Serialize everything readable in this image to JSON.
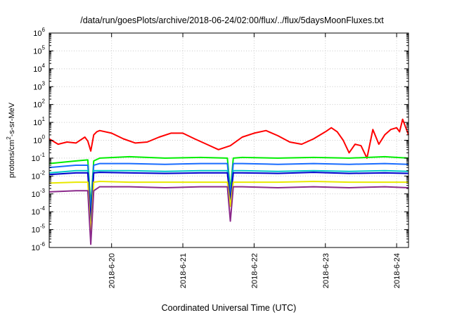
{
  "chart_data": {
    "type": "line",
    "title": "/data/run/goesPlots/archive/2018-06-24/02:00/flux/../flux/5daysMoonFluxes.txt",
    "xlabel": "Coordinated Universal Time (UTC)",
    "ylabel": {
      "pre": "protons/cm",
      "sup": "2",
      "post": "-s-sr-MeV"
    },
    "y_scale": "log",
    "ylim": [
      1e-06,
      1000000.0
    ],
    "xlim": [
      "2018-06-19 03:00",
      "2018-06-24 04:00"
    ],
    "grid": true,
    "legend": "none",
    "x_ticks": [
      "2018-6-20",
      "2018-6-21",
      "2018-6-22",
      "2018-6-23",
      "2018-6-24"
    ],
    "y_ticks": [
      {
        "base": "10",
        "exp": "6"
      },
      {
        "base": "10",
        "exp": "5"
      },
      {
        "base": "10",
        "exp": "4"
      },
      {
        "base": "10",
        "exp": "3"
      },
      {
        "base": "10",
        "exp": "2"
      },
      {
        "base": "10",
        "exp": "1"
      },
      {
        "base": "10",
        "exp": "0"
      },
      {
        "base": "10",
        "exp": "-1"
      },
      {
        "base": "10",
        "exp": "-2"
      },
      {
        "base": "10",
        "exp": "-3"
      },
      {
        "base": "10",
        "exp": "-4"
      },
      {
        "base": "10",
        "exp": "-5"
      },
      {
        "base": "10",
        "exp": "-6"
      }
    ],
    "series": [
      {
        "color": "#ff0000",
        "x": [
          "2018-06-19 03:00",
          "2018-06-19 06:00",
          "2018-06-19 09:00",
          "2018-06-19 12:00",
          "2018-06-19 15:00",
          "2018-06-19 16:00",
          "2018-06-19 17:00",
          "2018-06-19 18:00",
          "2018-06-19 19:00",
          "2018-06-19 20:00",
          "2018-06-20 00:00",
          "2018-06-20 04:00",
          "2018-06-20 08:00",
          "2018-06-20 12:00",
          "2018-06-20 16:00",
          "2018-06-20 20:00",
          "2018-06-21 00:00",
          "2018-06-21 04:00",
          "2018-06-21 08:00",
          "2018-06-21 12:00",
          "2018-06-21 16:00",
          "2018-06-21 20:00",
          "2018-06-22 00:00",
          "2018-06-22 04:00",
          "2018-06-22 08:00",
          "2018-06-22 12:00",
          "2018-06-22 16:00",
          "2018-06-22 20:00",
          "2018-06-23 00:00",
          "2018-06-23 02:00",
          "2018-06-23 04:00",
          "2018-06-23 06:00",
          "2018-06-23 08:00",
          "2018-06-23 10:00",
          "2018-06-23 12:00",
          "2018-06-23 14:00",
          "2018-06-23 16:00",
          "2018-06-23 18:00",
          "2018-06-23 20:00",
          "2018-06-23 22:00",
          "2018-06-24 00:00",
          "2018-06-24 01:00",
          "2018-06-24 02:00",
          "2018-06-24 04:00"
        ],
        "y": [
          1.2,
          0.6,
          0.8,
          0.7,
          1.5,
          0.9,
          0.25,
          2.0,
          3.0,
          3.5,
          2.5,
          1.2,
          0.7,
          0.8,
          1.5,
          2.5,
          2.5,
          1.2,
          0.6,
          0.3,
          0.5,
          1.5,
          2.5,
          3.5,
          1.8,
          0.8,
          0.6,
          1.2,
          3.0,
          5.0,
          3.0,
          1.0,
          0.2,
          0.6,
          0.5,
          0.1,
          4.0,
          0.6,
          2.0,
          4.0,
          5.0,
          3.0,
          15.0,
          2.0
        ]
      },
      {
        "color": "#00ee00",
        "x": [
          "2018-06-19 03:00",
          "2018-06-19 12:00",
          "2018-06-19 16:00",
          "2018-06-19 17:00",
          "2018-06-19 18:00",
          "2018-06-19 20:00",
          "2018-06-20 06:00",
          "2018-06-20 18:00",
          "2018-06-21 06:00",
          "2018-06-21 15:00",
          "2018-06-21 16:00",
          "2018-06-21 17:00",
          "2018-06-21 20:00",
          "2018-06-22 08:00",
          "2018-06-22 20:00",
          "2018-06-23 08:00",
          "2018-06-23 20:00",
          "2018-06-24 04:00"
        ],
        "y": [
          0.05,
          0.07,
          0.08,
          0.0002,
          0.07,
          0.1,
          0.12,
          0.1,
          0.11,
          0.1,
          0.0015,
          0.1,
          0.11,
          0.1,
          0.11,
          0.1,
          0.12,
          0.1
        ]
      },
      {
        "color": "#1a6cff",
        "x": [
          "2018-06-19 03:00",
          "2018-06-19 12:00",
          "2018-06-19 16:00",
          "2018-06-19 17:00",
          "2018-06-19 18:00",
          "2018-06-19 20:00",
          "2018-06-20 06:00",
          "2018-06-20 18:00",
          "2018-06-21 06:00",
          "2018-06-21 15:00",
          "2018-06-21 16:00",
          "2018-06-21 17:00",
          "2018-06-21 20:00",
          "2018-06-22 08:00",
          "2018-06-22 20:00",
          "2018-06-23 08:00",
          "2018-06-23 20:00",
          "2018-06-24 04:00"
        ],
        "y": [
          0.03,
          0.04,
          0.04,
          0.0001,
          0.04,
          0.05,
          0.05,
          0.045,
          0.05,
          0.05,
          0.0008,
          0.05,
          0.05,
          0.045,
          0.05,
          0.045,
          0.05,
          0.045
        ]
      },
      {
        "color": "#00c8c8",
        "x": [
          "2018-06-19 03:00",
          "2018-06-19 12:00",
          "2018-06-19 16:00",
          "2018-06-19 17:00",
          "2018-06-19 18:00",
          "2018-06-19 20:00",
          "2018-06-20 06:00",
          "2018-06-20 18:00",
          "2018-06-21 06:00",
          "2018-06-21 15:00",
          "2018-06-21 16:00",
          "2018-06-21 17:00",
          "2018-06-21 20:00",
          "2018-06-22 08:00",
          "2018-06-22 20:00",
          "2018-06-23 08:00",
          "2018-06-23 20:00",
          "2018-06-24 04:00"
        ],
        "y": [
          0.015,
          0.02,
          0.02,
          5e-05,
          0.02,
          0.02,
          0.02,
          0.018,
          0.02,
          0.02,
          0.0005,
          0.02,
          0.02,
          0.018,
          0.02,
          0.018,
          0.02,
          0.018
        ]
      },
      {
        "color": "#0000cc",
        "x": [
          "2018-06-19 03:00",
          "2018-06-19 12:00",
          "2018-06-19 16:00",
          "2018-06-19 17:00",
          "2018-06-19 18:00",
          "2018-06-19 20:00",
          "2018-06-20 06:00",
          "2018-06-20 18:00",
          "2018-06-21 06:00",
          "2018-06-21 15:00",
          "2018-06-21 16:00",
          "2018-06-21 17:00",
          "2018-06-21 20:00",
          "2018-06-22 08:00",
          "2018-06-22 20:00",
          "2018-06-23 08:00",
          "2018-06-23 20:00",
          "2018-06-24 04:00"
        ],
        "y": [
          0.012,
          0.015,
          0.015,
          3e-05,
          0.015,
          0.016,
          0.015,
          0.014,
          0.015,
          0.015,
          0.0004,
          0.015,
          0.015,
          0.014,
          0.016,
          0.014,
          0.015,
          0.014
        ]
      },
      {
        "color": "#e8e800",
        "x": [
          "2018-06-19 03:00",
          "2018-06-19 12:00",
          "2018-06-19 16:00",
          "2018-06-19 17:00",
          "2018-06-19 18:00",
          "2018-06-19 20:00",
          "2018-06-20 06:00",
          "2018-06-20 18:00",
          "2018-06-21 06:00",
          "2018-06-21 15:00",
          "2018-06-21 16:00",
          "2018-06-21 17:00",
          "2018-06-21 20:00",
          "2018-06-22 08:00",
          "2018-06-22 20:00",
          "2018-06-23 08:00",
          "2018-06-23 20:00",
          "2018-06-24 04:00"
        ],
        "y": [
          0.004,
          0.0045,
          0.0045,
          5e-06,
          0.0045,
          0.005,
          0.0045,
          0.0045,
          0.0045,
          0.0045,
          0.0002,
          0.0045,
          0.0045,
          0.0045,
          0.005,
          0.0045,
          0.0045,
          0.0045
        ]
      },
      {
        "color": "#8b2a8b",
        "x": [
          "2018-06-19 03:00",
          "2018-06-19 12:00",
          "2018-06-19 16:00",
          "2018-06-19 17:00",
          "2018-06-19 18:00",
          "2018-06-19 20:00",
          "2018-06-20 06:00",
          "2018-06-20 18:00",
          "2018-06-21 06:00",
          "2018-06-21 15:00",
          "2018-06-21 16:00",
          "2018-06-21 17:00",
          "2018-06-21 20:00",
          "2018-06-22 08:00",
          "2018-06-22 20:00",
          "2018-06-23 08:00",
          "2018-06-23 20:00",
          "2018-06-24 04:00"
        ],
        "y": [
          0.0013,
          0.0015,
          0.0015,
          1.5e-06,
          0.0015,
          0.0025,
          0.0025,
          0.0022,
          0.0025,
          0.0025,
          3e-05,
          0.0025,
          0.0025,
          0.0022,
          0.0025,
          0.0022,
          0.0025,
          0.0022
        ]
      }
    ]
  }
}
